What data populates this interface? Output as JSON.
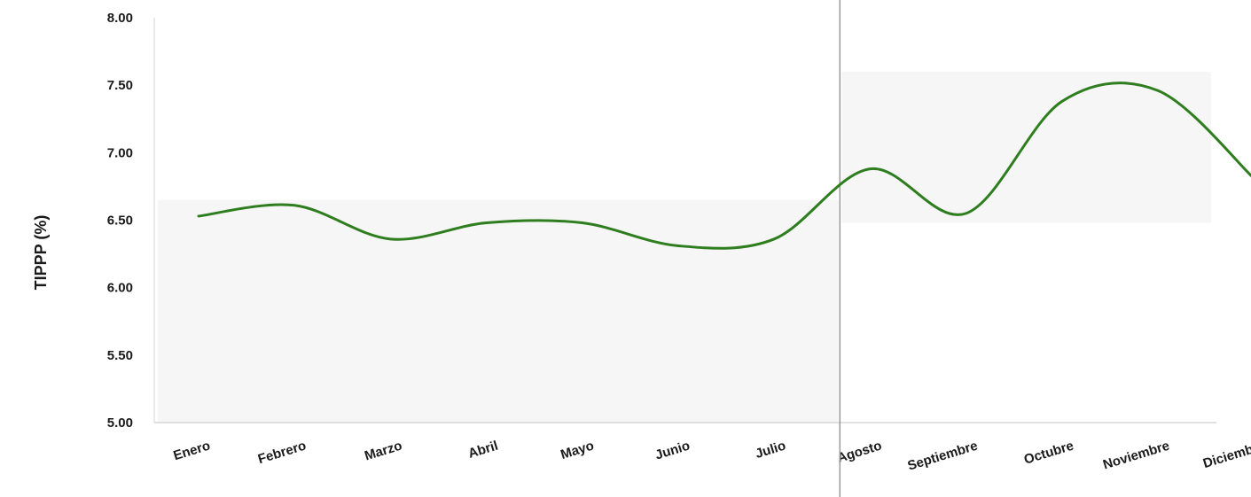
{
  "chart_data": {
    "type": "line",
    "title": "",
    "xlabel": "",
    "ylabel": "TIPPP (%)",
    "ylim": [
      5.0,
      8.0
    ],
    "y_ticks": [
      "5.00",
      "5.50",
      "6.00",
      "6.50",
      "7.00",
      "7.50",
      "8.00"
    ],
    "categories": [
      "Enero",
      "Febrero",
      "Marzo",
      "Abril",
      "Mayo",
      "Junio",
      "Julio",
      "Agosto",
      "Septiembre",
      "Octubre",
      "Noviembre",
      "Diciembre"
    ],
    "series": [
      {
        "values": [
          6.53,
          6.61,
          6.36,
          6.48,
          6.48,
          6.31,
          6.36,
          6.88,
          6.55,
          7.38,
          7.46,
          6.81
        ],
        "color": "#2e7d1f"
      }
    ],
    "smooth": true,
    "grid": false,
    "divider_between": [
      "Julio",
      "Agosto"
    ],
    "shaded_bands": [
      {
        "from": "Enero",
        "to": "Julio",
        "ylim": [
          5.0,
          6.65
        ]
      },
      {
        "from": "Agosto",
        "to": "Diciembre",
        "ylim": [
          6.48,
          7.6
        ]
      }
    ]
  }
}
